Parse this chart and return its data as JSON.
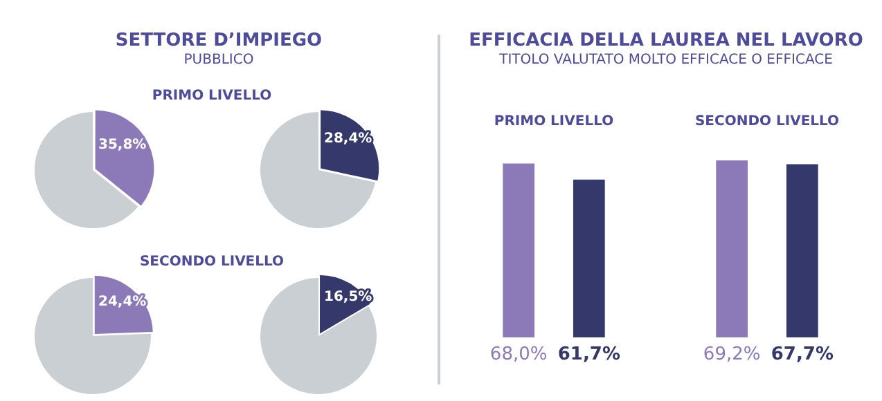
{
  "chart_data": [
    {
      "type": "other",
      "title": "SETTORE D’IMPIEGO",
      "subtitle": "PUBBLICO"
    },
    {
      "type": "pie",
      "title": "PRIMO LIVELLO",
      "categories": [
        null,
        null
      ],
      "values": [
        35.8,
        64.2
      ],
      "colors": [
        "#8c79b8",
        "#c9cfd2"
      ],
      "value_labels": [
        "35,8%",
        null
      ]
    },
    {
      "type": "pie",
      "categories": [
        null,
        null
      ],
      "values": [
        28.4,
        71.6
      ],
      "colors": [
        "#35386b",
        "#c9cfd2"
      ],
      "value_labels": [
        "28,4%",
        null
      ]
    },
    {
      "type": "pie",
      "title": "SECONDO LIVELLO",
      "categories": [
        null,
        null
      ],
      "values": [
        24.4,
        75.6
      ],
      "colors": [
        "#8c79b8",
        "#c9cfd2"
      ],
      "value_labels": [
        "24,4%",
        null
      ]
    },
    {
      "type": "pie",
      "categories": [
        null,
        null
      ],
      "values": [
        16.5,
        83.5
      ],
      "colors": [
        "#35386b",
        "#c9cfd2"
      ],
      "value_labels": [
        "16,5%",
        null
      ]
    },
    {
      "type": "bar",
      "title": "EFFICACIA DELLA LAUREA NEL LAVORO",
      "subtitle": "TITOLO VALUTATO MOLTO EFFICACE O EFFICACE",
      "categories": [
        "PRIMO LIVELLO",
        "SECONDO LIVELLO"
      ],
      "grid": false,
      "legend": false,
      "series": [
        {
          "color": "#8c79b8",
          "values": [
            68.0,
            69.2
          ],
          "value_labels": [
            "68,0%",
            "69,2%"
          ]
        },
        {
          "color": "#35386b",
          "values": [
            61.7,
            67.7
          ],
          "value_labels": [
            "61,7%",
            "67,7%"
          ]
        }
      ]
    }
  ]
}
